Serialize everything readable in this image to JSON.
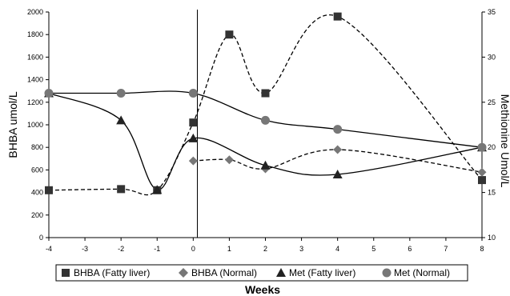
{
  "chart_data": {
    "type": "line",
    "xlabel": "Weeks",
    "ylabel_left": "BHBA umol/L",
    "ylabel_right": "Methionine Umol/L",
    "xlim": [
      -4,
      8
    ],
    "xticks": [
      "-4",
      "-3",
      "-2",
      "-1",
      "0",
      "1",
      "2",
      "3",
      "4",
      "5",
      "6",
      "7",
      "8"
    ],
    "ylim_left": [
      0,
      2000
    ],
    "yticks_left": [
      "0",
      "200",
      "400",
      "600",
      "800",
      "1000",
      "1200",
      "1400",
      "1600",
      "1800",
      "2000"
    ],
    "ylim_right": [
      10,
      35
    ],
    "yticks_right": [
      "10",
      "15",
      "20",
      "25",
      "30",
      "35"
    ],
    "legend_position": "bottom",
    "series": [
      {
        "name": "BHBA (Fatty liver)",
        "axis": "left",
        "marker": "square",
        "line": "dashed",
        "x": [
          -4,
          -2,
          -1,
          0,
          1,
          2,
          4,
          8
        ],
        "y": [
          420,
          430,
          420,
          1020,
          1800,
          1280,
          1960,
          510
        ]
      },
      {
        "name": "BHBA (Normal)",
        "axis": "left",
        "marker": "diamond",
        "line": "dashed",
        "x": [
          0,
          1,
          2,
          4,
          8
        ],
        "y": [
          680,
          690,
          610,
          780,
          580
        ]
      },
      {
        "name": "Met (Fatty liver)",
        "axis": "right",
        "marker": "triangle",
        "line": "solid",
        "x": [
          -4,
          -2,
          -1,
          0,
          2,
          4,
          8
        ],
        "y": [
          26,
          23,
          15.3,
          21,
          18,
          17,
          20
        ]
      },
      {
        "name": "Met (Normal)",
        "axis": "right",
        "marker": "circle",
        "line": "solid",
        "x": [
          -4,
          -2,
          0,
          2,
          4,
          8
        ],
        "y": [
          26,
          26,
          26,
          23,
          22,
          20
        ]
      }
    ]
  }
}
